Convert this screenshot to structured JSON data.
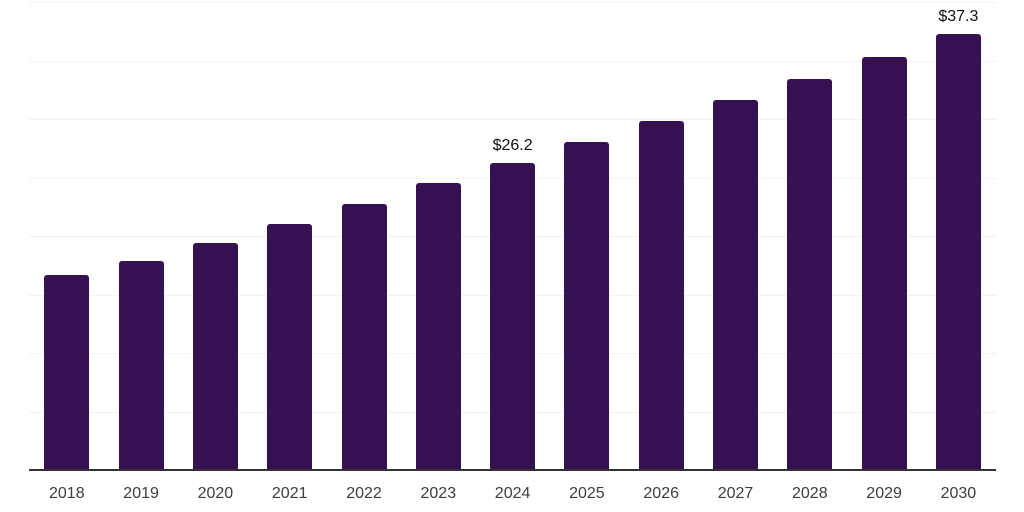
{
  "chart": {
    "colors": {
      "bar": "#351151",
      "axis_line": "#333333",
      "gridline": "#f2f2f2",
      "tick_label": "#3d3d3d",
      "value_label": "#111111",
      "background": "#ffffff"
    }
  },
  "chart_data": {
    "type": "bar",
    "title": "",
    "xlabel": "",
    "ylabel": "",
    "categories": [
      "2018",
      "2019",
      "2020",
      "2021",
      "2022",
      "2023",
      "2024",
      "2025",
      "2026",
      "2027",
      "2028",
      "2029",
      "2030"
    ],
    "values": [
      16.7,
      17.9,
      19.4,
      21.0,
      22.7,
      24.5,
      26.2,
      28.0,
      29.8,
      31.6,
      33.4,
      35.3,
      37.3
    ],
    "data_labels": [
      null,
      null,
      null,
      null,
      null,
      null,
      "$26.2",
      null,
      null,
      null,
      null,
      null,
      "$37.3"
    ],
    "ylim": [
      0,
      40
    ],
    "gridline_step": 5,
    "grid": "horizontal-only",
    "y_axis_labels_visible": false,
    "legend": "none"
  }
}
